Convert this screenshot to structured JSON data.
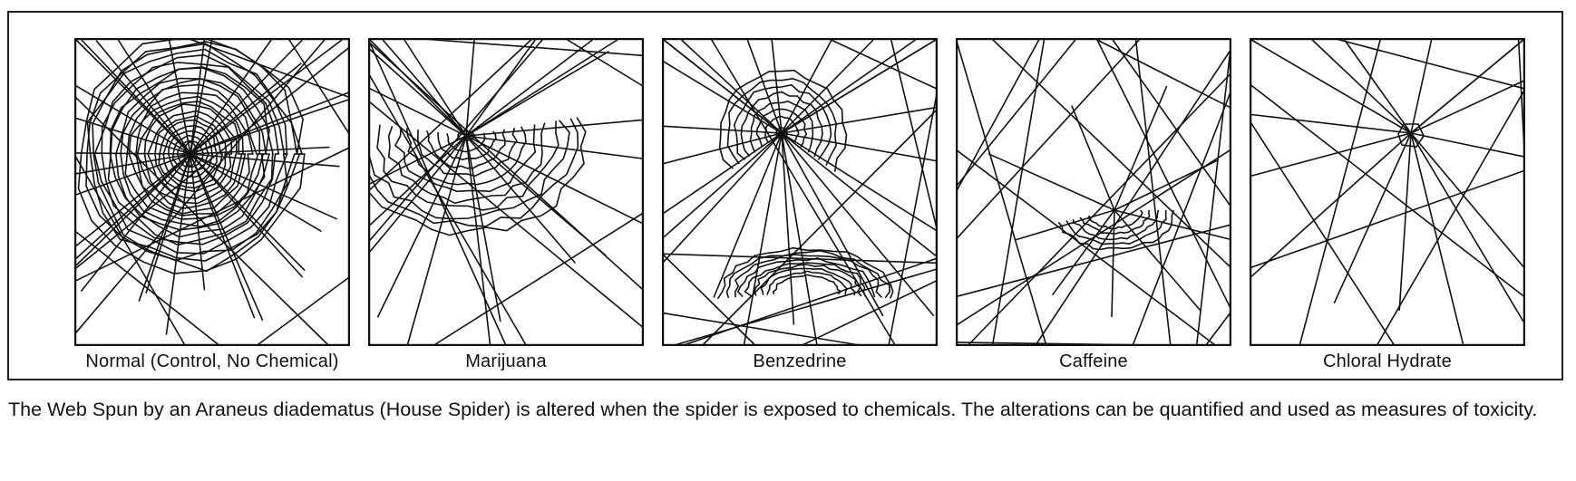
{
  "panels": [
    {
      "key": "normal",
      "label": "Normal (Control, No Chemical)"
    },
    {
      "key": "marijuana",
      "label": "Marijuana"
    },
    {
      "key": "benzedrine",
      "label": "Benzedrine"
    },
    {
      "key": "caffeine",
      "label": "Caffeine"
    },
    {
      "key": "chloral",
      "label": "Chloral Hydrate"
    }
  ],
  "caption": {
    "text": "The Web Spun by an Araneus diadematus (House Spider) is altered when the spider is exposed to chemicals. The alterations can be quantified and used as measures of toxicity."
  }
}
